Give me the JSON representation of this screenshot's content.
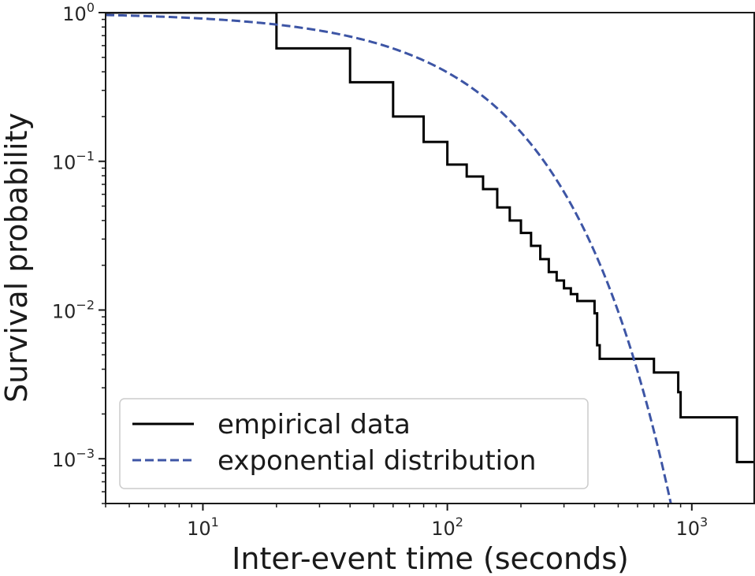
{
  "chart_data": {
    "type": "line",
    "title": "",
    "xlabel": "Inter-event time (seconds)",
    "ylabel": "Survival probability",
    "xscale": "log",
    "yscale": "log",
    "xlim": [
      4,
      1800
    ],
    "ylim": [
      0.0005,
      1
    ],
    "grid": false,
    "legend_position": "lower-left",
    "x_ticks": [
      {
        "value": 10,
        "base": "10",
        "exp": "1"
      },
      {
        "value": 100,
        "base": "10",
        "exp": "2"
      },
      {
        "value": 1000,
        "base": "10",
        "exp": "3"
      }
    ],
    "y_ticks": [
      {
        "value": 1,
        "base": "10",
        "exp": "0"
      },
      {
        "value": 0.1,
        "base": "10",
        "exp": "−1"
      },
      {
        "value": 0.01,
        "base": "10",
        "exp": "−2"
      },
      {
        "value": 0.001,
        "base": "10",
        "exp": "−3"
      }
    ],
    "series": [
      {
        "name": "empirical data",
        "color": "#000000",
        "style": "solid",
        "drawstyle": "steps-post",
        "points": [
          [
            4,
            1.0
          ],
          [
            20,
            0.575
          ],
          [
            40,
            0.34
          ],
          [
            60,
            0.2
          ],
          [
            80,
            0.135
          ],
          [
            100,
            0.095
          ],
          [
            120,
            0.079
          ],
          [
            140,
            0.065
          ],
          [
            160,
            0.049
          ],
          [
            180,
            0.04
          ],
          [
            200,
            0.033
          ],
          [
            220,
            0.027
          ],
          [
            240,
            0.022
          ],
          [
            260,
            0.018
          ],
          [
            280,
            0.0158
          ],
          [
            300,
            0.014
          ],
          [
            320,
            0.0128
          ],
          [
            340,
            0.0115
          ],
          [
            400,
            0.0095
          ],
          [
            410,
            0.0058
          ],
          [
            420,
            0.0047
          ],
          [
            700,
            0.0038
          ],
          [
            880,
            0.0028
          ],
          [
            900,
            0.0019
          ],
          [
            1530,
            0.00095
          ],
          [
            1800,
            0.00095
          ]
        ]
      },
      {
        "name": "exponential distribution",
        "color": "#3d55a5",
        "style": "dashed",
        "function": "exp(-x/mean)",
        "mean_seconds": 108,
        "x_range": [
          4,
          830
        ]
      }
    ]
  }
}
